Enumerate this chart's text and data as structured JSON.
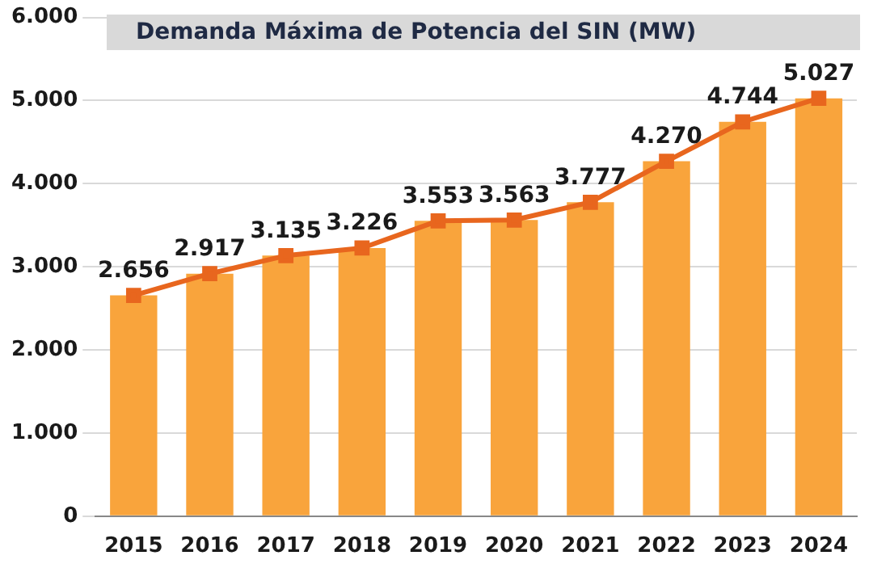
{
  "chart_data": {
    "type": "bar",
    "title": "Demanda Máxima de Potencia del SIN (MW)",
    "categories": [
      "2015",
      "2016",
      "2017",
      "2018",
      "2019",
      "2020",
      "2021",
      "2022",
      "2023",
      "2024"
    ],
    "series": [
      {
        "color": "#f9a43c",
        "values": [
          2656,
          2917,
          3135,
          3226,
          3553,
          3563,
          3777,
          4270,
          4744,
          5027
        ]
      },
      {
        "type": "line",
        "color": "#e8661e",
        "values": [
          2656,
          2917,
          3135,
          3226,
          3553,
          3563,
          3777,
          4270,
          4744,
          5027
        ],
        "value_labels": [
          "2.656",
          "2.917",
          "3.135",
          "3.226",
          "3.553",
          "3.563",
          "3.777",
          "4.270",
          "4.744",
          "5.027"
        ]
      }
    ],
    "ylim": [
      0,
      6000
    ],
    "yticks": [
      {
        "value": 0,
        "label": "0"
      },
      {
        "value": 1000,
        "label": "1.000"
      },
      {
        "value": 2000,
        "label": "2.000"
      },
      {
        "value": 3000,
        "label": "3.000"
      },
      {
        "value": 4000,
        "label": "4.000"
      },
      {
        "value": 5000,
        "label": "5.000"
      },
      {
        "value": 6000,
        "label": "6.000"
      }
    ],
    "grid": "y",
    "marker": "square",
    "line_style": "solid",
    "legend": false
  }
}
